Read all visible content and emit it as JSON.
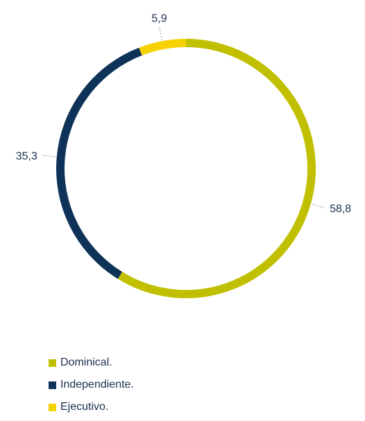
{
  "chart_data": {
    "type": "pie",
    "donut": true,
    "slices": [
      {
        "label": "Dominical.",
        "value": 58.8,
        "value_label": "58,8",
        "color": "#c0c000"
      },
      {
        "label": "Independiente.",
        "value": 35.3,
        "value_label": "35,3",
        "color": "#0f3258"
      },
      {
        "label": "Ejecutivo.",
        "value": 5.9,
        "value_label": "5,9",
        "color": "#f6d200"
      }
    ],
    "legend_position": "bottom-left"
  }
}
